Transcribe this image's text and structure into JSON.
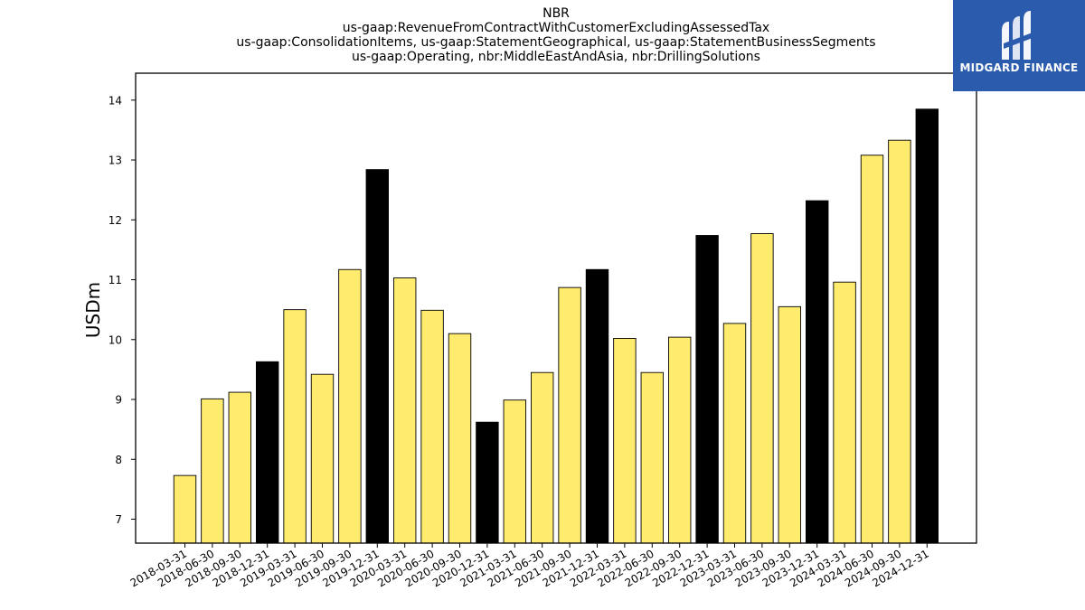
{
  "title_lines": [
    "NBR",
    "us-gaap:RevenueFromContractWithCustomerExcludingAssessedTax",
    "us-gaap:ConsolidationItems, us-gaap:StatementGeographical, us-gaap:StatementBusinessSegments",
    "us-gaap:Operating, nbr:MiddleEastAndAsia, nbr:DrillingSolutions"
  ],
  "logo": {
    "text": "MIDGARD FINANCE",
    "background": "#2b5bad"
  },
  "chart_data": {
    "type": "bar",
    "ylabel": "USDm",
    "xlabel": "",
    "ylim": [
      6.6,
      14.45
    ],
    "yticks": [
      7,
      8,
      9,
      10,
      11,
      12,
      13,
      14
    ],
    "colors": {
      "quarter": "#ffeb6e",
      "year_end": "#000000",
      "edge": "#000000"
    },
    "categories": [
      "2018-03-31",
      "2018-06-30",
      "2018-09-30",
      "2018-12-31",
      "2019-03-31",
      "2019-06-30",
      "2019-09-30",
      "2019-12-31",
      "2020-03-31",
      "2020-06-30",
      "2020-09-30",
      "2020-12-31",
      "2021-03-31",
      "2021-06-30",
      "2021-09-30",
      "2021-12-31",
      "2022-03-31",
      "2022-06-30",
      "2022-09-30",
      "2022-12-31",
      "2023-03-31",
      "2023-06-30",
      "2023-09-30",
      "2023-12-31",
      "2024-03-31",
      "2024-06-30",
      "2024-09-30",
      "2024-12-31"
    ],
    "values": [
      7.73,
      9.01,
      9.12,
      9.63,
      10.5,
      9.42,
      11.17,
      12.84,
      11.03,
      10.49,
      10.1,
      8.62,
      8.99,
      9.45,
      10.87,
      11.17,
      10.02,
      9.45,
      10.04,
      11.74,
      10.27,
      11.77,
      10.55,
      12.32,
      10.96,
      13.08,
      13.33,
      13.85
    ],
    "year_end": [
      false,
      false,
      false,
      true,
      false,
      false,
      false,
      true,
      false,
      false,
      false,
      true,
      false,
      false,
      false,
      true,
      false,
      false,
      false,
      true,
      false,
      false,
      false,
      true,
      false,
      false,
      false,
      true
    ]
  }
}
